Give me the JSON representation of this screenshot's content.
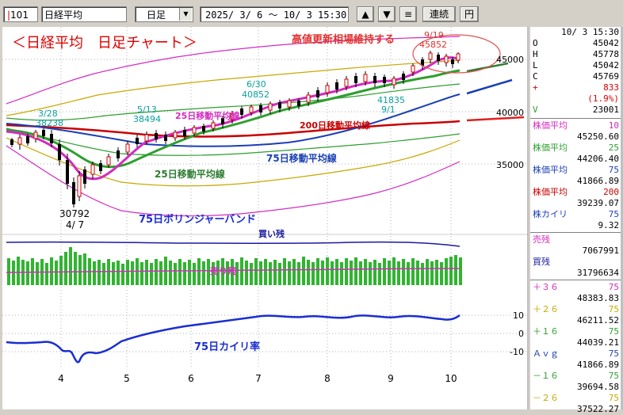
{
  "toolbar": {
    "code": "101",
    "name": "日経平均",
    "period": "日足",
    "date_range": "2025/ 3/ 6 〜 10/ 3 15:30",
    "up_label": "▲",
    "down_label": "▼",
    "menu_label": "≡",
    "chain_label": "連続",
    "yen_label": "円"
  },
  "annotations": {
    "title": "＜日経平均　日足チャート＞",
    "record": "高値更新相場維持する",
    "ma25": "25日移動平均線",
    "ma25b": "25日移動平均線",
    "ma75": "75日移動平均線",
    "ma200": "200日移動平均線",
    "bollinger": "75日ボリンジャーバンド",
    "kaili": "75日カイリ率",
    "buy": "買い残",
    "sell": "売り残",
    "p1_date": "3/28",
    "p1_val": "38238",
    "p2_date": "5/13",
    "p2_val": "38494",
    "p3_date": "6/30",
    "p3_val": "40852",
    "p4_date": "9/19",
    "p4_val": "45852",
    "p5_val": "41835",
    "p5_date": "9/1",
    "p6_val": "30792",
    "p6_date": "4/ 7"
  },
  "axis": {
    "price_ticks": [
      "45000",
      "40000",
      "35000"
    ],
    "kaili_ticks": [
      "10",
      "0",
      "-10"
    ],
    "months": [
      "4",
      "5",
      "6",
      "7",
      "8",
      "9",
      "10"
    ]
  },
  "panel": {
    "datetime": "10/ 3 15:30",
    "ohlc": [
      {
        "k": "O",
        "v": "45042"
      },
      {
        "k": "H",
        "v": "45778"
      },
      {
        "k": "L",
        "v": "45042"
      },
      {
        "k": "C",
        "v": "45769"
      }
    ],
    "change": "833",
    "change_pct": "(1.9%)",
    "volume_label": "V",
    "volume": "23001",
    "ma": [
      {
        "label": "株価平均",
        "period": "10",
        "value": "45250.60",
        "color": "#d42bc0"
      },
      {
        "label": "株価平均",
        "period": "25",
        "value": "44206.40",
        "color": "#2e9e2e"
      },
      {
        "label": "株価平均",
        "period": "75",
        "value": "41866.89",
        "color": "#1a3fb5"
      },
      {
        "label": "株価平均",
        "period": "200",
        "value": "39239.07",
        "color": "#c80000"
      }
    ],
    "kaili_label": "株カイリ",
    "kaili_period": "75",
    "kaili_value": "9.32",
    "sell_label": "売残",
    "sell_value": "7067991",
    "buy_label": "買残",
    "buy_value": "31796634",
    "bands": [
      {
        "label": "＋３６",
        "period": "75",
        "value": "48383.83",
        "color": "#d42bc0"
      },
      {
        "label": "＋２６",
        "period": "75",
        "value": "46211.52",
        "color": "#c8a800"
      },
      {
        "label": "＋１６",
        "period": "75",
        "value": "44039.21",
        "color": "#2e9e2e"
      },
      {
        "label": "Ａｖｇ",
        "period": "75",
        "value": "41866.89",
        "color": "#1a3fb5"
      },
      {
        "label": "－１６",
        "period": "75",
        "value": "39694.58",
        "color": "#2e9e2e"
      },
      {
        "label": "－２６",
        "period": "75",
        "value": "37522.27",
        "color": "#c8a800"
      }
    ]
  }
}
